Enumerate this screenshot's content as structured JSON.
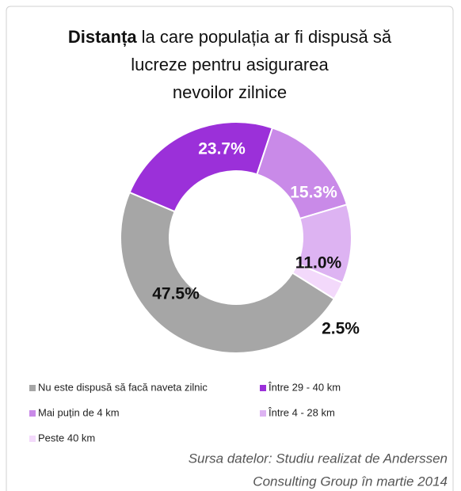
{
  "chart_data": {
    "type": "donut",
    "title_bold": "Distanța",
    "title_lines": [
      "la care populația ar fi dispusă să",
      "lucreze pentru asigurarea",
      "nevoilor zilnice"
    ],
    "categories": [
      "Nu este dispusă să facă naveta zilnic",
      "Între 29 - 40 km",
      "Mai puțin de 4 km",
      "Între 4 - 28 km",
      "Peste 40 km"
    ],
    "values": [
      47.5,
      23.7,
      15.3,
      11.0,
      2.5
    ],
    "value_labels": [
      "47.5%",
      "23.7%",
      "15.3%",
      "11.0%",
      "2.5%"
    ],
    "colors": [
      "#a6a6a6",
      "#9b30d9",
      "#c98ae8",
      "#ddb3f2",
      "#f3d9fb"
    ],
    "source": [
      "Sursa datelor: Studiu realizat de Anderssen",
      "Consulting Group în martie 2014"
    ]
  }
}
